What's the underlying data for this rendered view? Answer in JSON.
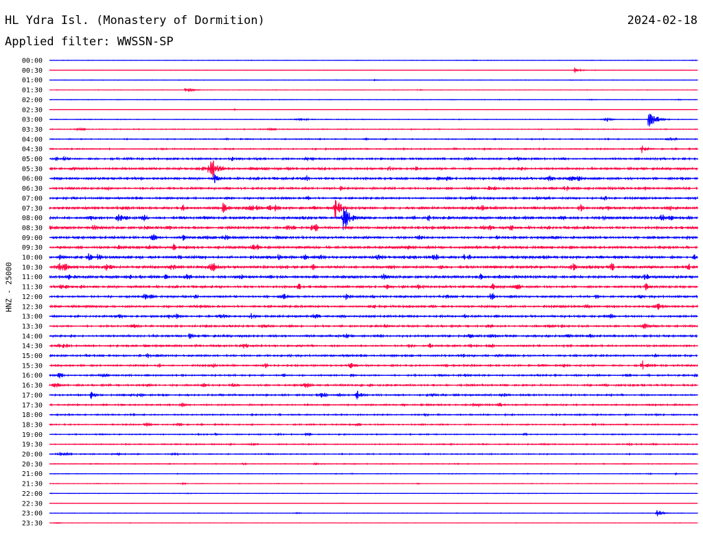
{
  "header": {
    "station": "HL Ydra Isl. (Monastery of Dormition)",
    "date": "2024-02-18",
    "filter": "Applied filter: WWSSN-SP"
  },
  "chart_data": {
    "type": "line",
    "title": "HL Ydra Isl. (Monastery of Dormition)",
    "ylabel": "HNZ - 25000",
    "colors": [
      "#0000ff",
      "#ff0040"
    ],
    "rows": [
      "00:00",
      "00:30",
      "01:00",
      "01:30",
      "02:00",
      "02:30",
      "03:00",
      "03:30",
      "04:00",
      "04:30",
      "05:00",
      "05:30",
      "06:00",
      "06:30",
      "07:00",
      "07:30",
      "08:00",
      "08:30",
      "09:00",
      "09:30",
      "10:00",
      "10:30",
      "11:00",
      "11:30",
      "12:00",
      "12:30",
      "13:00",
      "13:30",
      "14:00",
      "14:30",
      "15:00",
      "15:30",
      "16:00",
      "16:30",
      "17:00",
      "17:30",
      "18:00",
      "18:30",
      "19:00",
      "19:30",
      "20:00",
      "20:30",
      "21:00",
      "21:30",
      "22:00",
      "22:30",
      "23:00",
      "23:30"
    ],
    "noise": [
      0.3,
      0.3,
      0.4,
      0.3,
      0.4,
      0.3,
      0.5,
      0.6,
      0.8,
      0.9,
      1.4,
      1.6,
      1.8,
      1.6,
      1.5,
      2.0,
      2.1,
      2.0,
      1.8,
      1.9,
      2.1,
      2.2,
      2.0,
      1.7,
      1.5,
      1.6,
      1.5,
      1.4,
      1.5,
      1.4,
      1.4,
      1.3,
      1.2,
      1.3,
      1.2,
      1.1,
      1.0,
      0.9,
      0.8,
      0.8,
      0.8,
      0.6,
      0.5,
      0.4,
      0.4,
      0.3,
      0.4,
      0.3
    ],
    "events": [
      {
        "row": 1,
        "min": 24.3,
        "amp": 5
      },
      {
        "row": 3,
        "min": 6.3,
        "amp": 7
      },
      {
        "row": 6,
        "min": 25.7,
        "amp": 6
      },
      {
        "row": 6,
        "min": 27.7,
        "amp": 16
      },
      {
        "row": 9,
        "min": 27.4,
        "amp": 8
      },
      {
        "row": 11,
        "min": 7.4,
        "amp": 22
      },
      {
        "row": 12,
        "min": 7.6,
        "amp": 10
      },
      {
        "row": 15,
        "min": 8.0,
        "amp": 10
      },
      {
        "row": 15,
        "min": 13.2,
        "amp": 16
      },
      {
        "row": 16,
        "min": 3.1,
        "amp": 10
      },
      {
        "row": 16,
        "min": 13.6,
        "amp": 24
      },
      {
        "row": 17,
        "min": 2.0,
        "amp": 7
      },
      {
        "row": 20,
        "min": 1.8,
        "amp": 8
      },
      {
        "row": 21,
        "min": 2.6,
        "amp": 9
      },
      {
        "row": 22,
        "min": 20.8,
        "amp": 10
      },
      {
        "row": 24,
        "min": 13.7,
        "amp": 6
      },
      {
        "row": 24,
        "min": 20.4,
        "amp": 8
      },
      {
        "row": 26,
        "min": 9.3,
        "amp": 6
      },
      {
        "row": 28,
        "min": 6.4,
        "amp": 6
      },
      {
        "row": 31,
        "min": 27.4,
        "amp": 10
      },
      {
        "row": 34,
        "min": 1.9,
        "amp": 7
      },
      {
        "row": 34,
        "min": 14.2,
        "amp": 8
      },
      {
        "row": 46,
        "min": 28.1,
        "amp": 6
      }
    ]
  }
}
